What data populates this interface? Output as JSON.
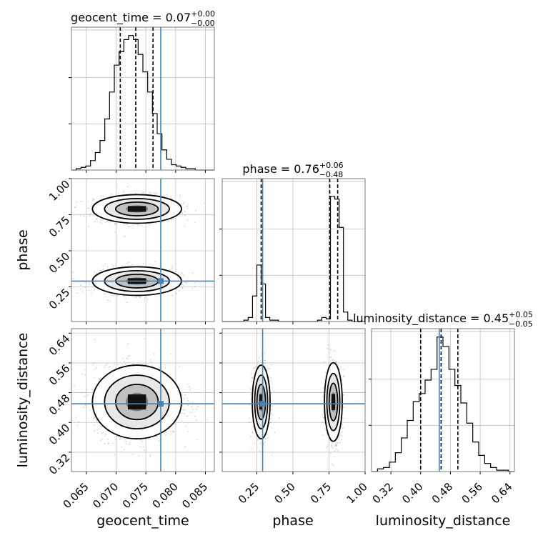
{
  "chart_data": {
    "type": "corner",
    "parameters": [
      "geocent_time",
      "phase",
      "luminosity_distance"
    ],
    "axis_labels": [
      "geocent_time",
      "phase",
      "luminosity_distance"
    ],
    "truths": {
      "geocent_time": 0.0775,
      "phase": 0.29,
      "luminosity_distance": 0.45
    },
    "colors": {
      "truth": "#4682b4",
      "hist": "#000000",
      "grid": "#c0c0c0",
      "samples": "#9e9e9e"
    },
    "grid": true,
    "diagonal": [
      {
        "param": "geocent_time",
        "title_main": "geocent_time = 0.07",
        "title_sup": "+0.00",
        "title_sub": "−0.00",
        "range": [
          0.0625,
          0.0865
        ],
        "ticks": [
          0.065,
          0.07,
          0.075,
          0.08,
          0.085
        ],
        "tick_labels": [
          "0.065",
          "0.070",
          "0.075",
          "0.080",
          "0.085"
        ],
        "quantiles": [
          0.0707,
          0.0733,
          0.0762
        ],
        "bin_edges": [
          0.0625,
          0.0633,
          0.0641,
          0.0649,
          0.0657,
          0.0665,
          0.0673,
          0.0681,
          0.0689,
          0.0697,
          0.0705,
          0.0713,
          0.0721,
          0.0729,
          0.0737,
          0.0745,
          0.0753,
          0.0761,
          0.0769,
          0.0777,
          0.0785,
          0.0793,
          0.0801,
          0.0809,
          0.0817,
          0.0825,
          0.0833,
          0.0841,
          0.0849,
          0.0857,
          0.0865
        ],
        "counts": [
          0,
          0.01,
          0.02,
          0.03,
          0.07,
          0.13,
          0.22,
          0.38,
          0.58,
          0.78,
          0.88,
          0.97,
          1.0,
          0.97,
          0.86,
          0.73,
          0.58,
          0.42,
          0.27,
          0.15,
          0.08,
          0.04,
          0.03,
          0.02,
          0.01,
          0.01,
          0,
          0,
          0,
          0
        ]
      },
      {
        "param": "phase",
        "title_main": "phase = 0.76",
        "title_sup": "+0.06",
        "title_sub": "−0.48",
        "range": [
          0.01,
          1.0
        ],
        "ticks": [
          0.25,
          0.5,
          0.75,
          1.0
        ],
        "tick_labels": [
          "0.25",
          "0.50",
          "0.75",
          "1.00"
        ],
        "quantiles": [
          0.28,
          0.755,
          0.81
        ],
        "bin_edges": [
          0.01,
          0.04,
          0.07,
          0.1,
          0.13,
          0.16,
          0.19,
          0.22,
          0.25,
          0.28,
          0.31,
          0.34,
          0.37,
          0.4,
          0.43,
          0.46,
          0.49,
          0.52,
          0.55,
          0.58,
          0.61,
          0.64,
          0.67,
          0.7,
          0.73,
          0.76,
          0.79,
          0.82,
          0.85,
          0.88,
          0.91,
          0.94,
          0.97,
          1.0
        ],
        "counts": [
          0,
          0,
          0,
          0,
          0,
          0.01,
          0.03,
          0.19,
          0.42,
          0.28,
          0.03,
          0.01,
          0.01,
          0,
          0,
          0,
          0,
          0,
          0,
          0,
          0,
          0,
          0.01,
          0.03,
          0.02,
          0.93,
          0.91,
          0.7,
          0.07,
          0.01,
          0,
          0,
          0
        ]
      },
      {
        "param": "luminosity_distance",
        "title_main": "luminosity_distance = 0.45",
        "title_sup": "+0.05",
        "title_sub": "−0.05",
        "range": [
          0.268,
          0.652
        ],
        "ticks": [
          0.32,
          0.4,
          0.48,
          0.56,
          0.64
        ],
        "tick_labels": [
          "0.32",
          "0.40",
          "0.48",
          "0.56",
          "0.64"
        ],
        "quantiles": [
          0.4,
          0.455,
          0.5
        ],
        "bin_edges": [
          0.268,
          0.284,
          0.3,
          0.316,
          0.332,
          0.348,
          0.364,
          0.38,
          0.396,
          0.412,
          0.428,
          0.444,
          0.46,
          0.476,
          0.492,
          0.508,
          0.524,
          0.54,
          0.556,
          0.572,
          0.588,
          0.604,
          0.62,
          0.636,
          0.652
        ],
        "counts": [
          0,
          0.02,
          0.03,
          0.07,
          0.14,
          0.25,
          0.38,
          0.52,
          0.58,
          0.68,
          0.76,
          1.0,
          0.93,
          0.76,
          0.64,
          0.51,
          0.36,
          0.22,
          0.12,
          0.06,
          0.03,
          0.01,
          0.01,
          0
        ]
      }
    ],
    "pairs": [
      {
        "x": "geocent_time",
        "y": "phase",
        "row": 1,
        "col": 0,
        "y_range": [
          0.01,
          1.0
        ],
        "y_ticks": [
          0.25,
          0.5,
          0.75,
          1.0
        ],
        "y_tick_labels": [
          "0.25",
          "0.50",
          "0.75",
          "1.00"
        ],
        "modes": [
          {
            "cx": 0.0735,
            "cy": 0.79,
            "sx": 0.0034,
            "sy": 0.045,
            "weight": 0.6
          },
          {
            "cx": 0.0735,
            "cy": 0.29,
            "sx": 0.0034,
            "sy": 0.045,
            "weight": 0.4
          }
        ]
      },
      {
        "x": "geocent_time",
        "y": "luminosity_distance",
        "row": 2,
        "col": 0,
        "y_range": [
          0.268,
          0.652
        ],
        "y_ticks": [
          0.32,
          0.4,
          0.48,
          0.56,
          0.64
        ],
        "y_tick_labels": [
          "0.32",
          "0.40",
          "0.48",
          "0.56",
          "0.64"
        ],
        "modes": [
          {
            "cx": 0.0735,
            "cy": 0.455,
            "sx": 0.0034,
            "sy": 0.045,
            "weight": 1.0
          }
        ]
      },
      {
        "x": "phase",
        "y": "luminosity_distance",
        "row": 2,
        "col": 1,
        "y_range": [
          0.268,
          0.652
        ],
        "modes": [
          {
            "cx": 0.28,
            "cy": 0.455,
            "sx": 0.028,
            "sy": 0.045,
            "weight": 0.4
          },
          {
            "cx": 0.78,
            "cy": 0.455,
            "sx": 0.028,
            "sy": 0.048,
            "weight": 0.6
          }
        ]
      }
    ]
  }
}
